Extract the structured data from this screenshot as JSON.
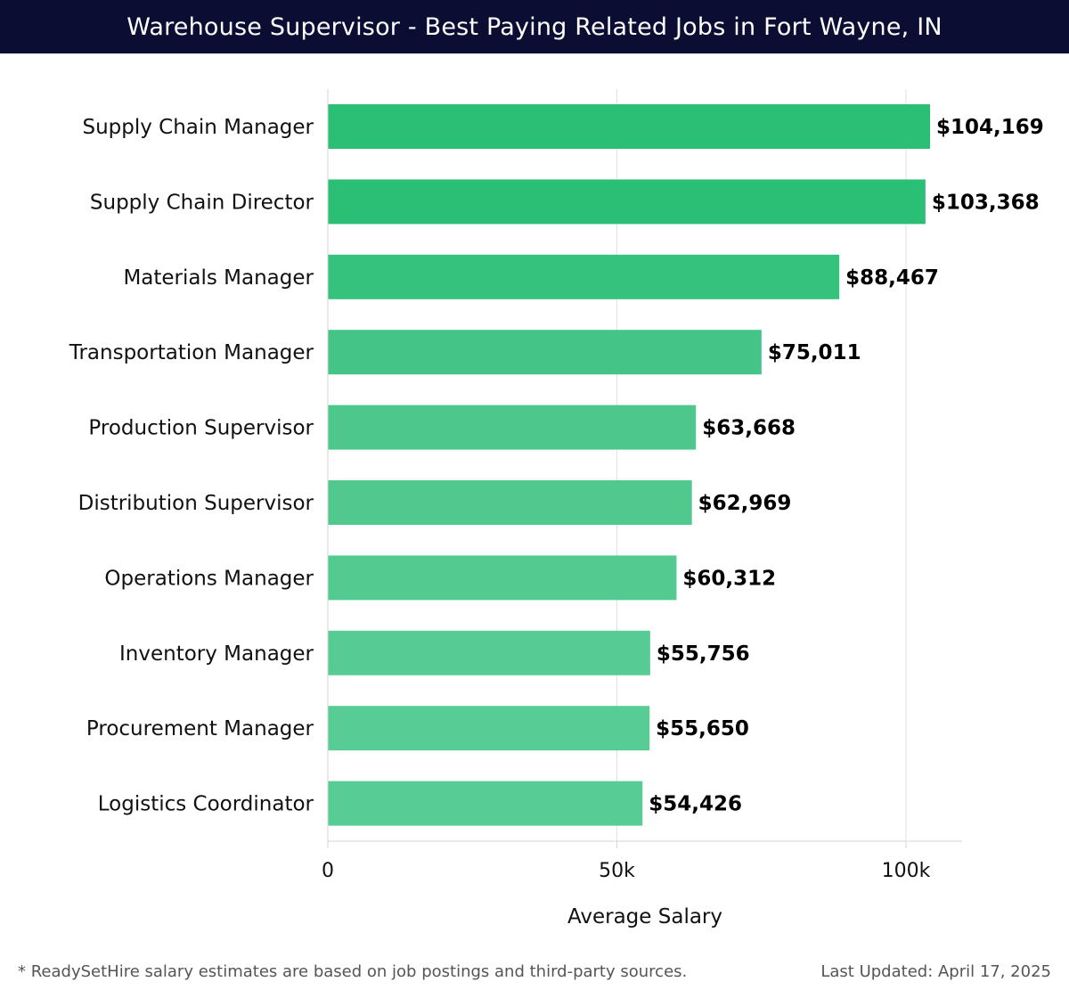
{
  "chart_data": {
    "type": "bar",
    "orientation": "horizontal",
    "title": "Warehouse Supervisor - Best Paying Related Jobs in Fort Wayne, IN",
    "xlabel": "Average Salary",
    "ylabel": "",
    "xlim": [
      0,
      110000
    ],
    "x_ticks": [
      0,
      50000,
      100000
    ],
    "x_tick_labels": [
      "0",
      "50k",
      "100k"
    ],
    "grid": "vertical",
    "categories": [
      "Supply Chain Manager",
      "Supply Chain Director",
      "Materials Manager",
      "Transportation Manager",
      "Production Supervisor",
      "Distribution Supervisor",
      "Operations Manager",
      "Inventory Manager",
      "Procurement Manager",
      "Logistics Coordinator"
    ],
    "values": [
      104169,
      103368,
      88467,
      75011,
      63668,
      62969,
      60312,
      55756,
      55650,
      54426
    ],
    "data_labels": [
      "$104,169",
      "$103,368",
      "$88,467",
      "$75,011",
      "$63,668",
      "$62,969",
      "$60,312",
      "$55,756",
      "$55,650",
      "$54,426"
    ],
    "bar_colors": [
      "#2bbf76",
      "#2bbf76",
      "#35c27d",
      "#45c487",
      "#4ec78c",
      "#50c88e",
      "#53ca90",
      "#56cb93",
      "#57cc94",
      "#58cc95"
    ]
  },
  "footer": {
    "note": "* ReadySetHire salary estimates are based on job postings and third-party sources.",
    "updated": "Last Updated: April 17, 2025"
  }
}
